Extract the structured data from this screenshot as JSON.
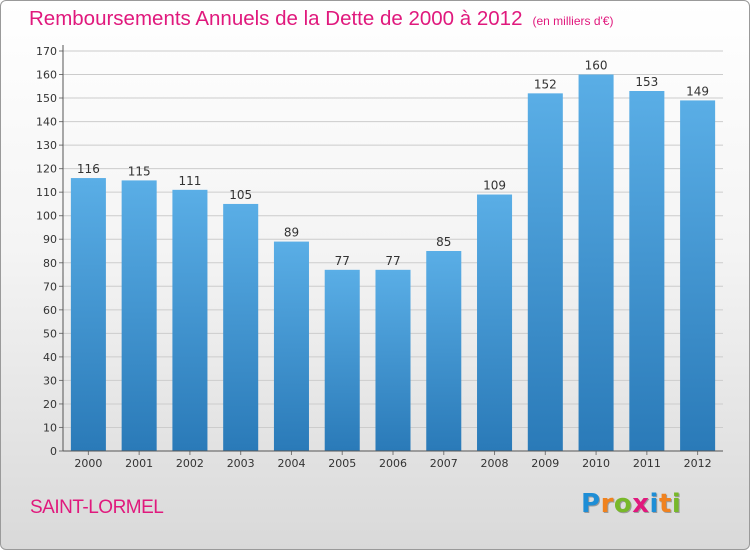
{
  "title": "Remboursements Annuels de la Dette de 2000 à 2012",
  "unit_label": "(en milliers d'€)",
  "commune": "SAINT-LORMEL",
  "logo": {
    "text": "Proxiti",
    "letters": [
      "P",
      "r",
      "o",
      "x",
      "i",
      "t",
      "i"
    ],
    "colors": [
      "#1e8ed6",
      "#f0821e",
      "#78b82a",
      "#e0197d",
      "#1e8ed6",
      "#f0821e",
      "#78b82a"
    ]
  },
  "colors": {
    "title": "#e0197d",
    "bar_top": "#5aaee6",
    "bar_bottom": "#2a7ab8",
    "grid": "#cccccc"
  },
  "chart_data": {
    "type": "bar",
    "categories": [
      "2000",
      "2001",
      "2002",
      "2003",
      "2004",
      "2005",
      "2006",
      "2007",
      "2008",
      "2009",
      "2010",
      "2011",
      "2012"
    ],
    "values": [
      116,
      115,
      111,
      105,
      89,
      77,
      77,
      85,
      109,
      152,
      160,
      153,
      149
    ],
    "ylim": [
      0,
      170
    ],
    "yticks": [
      0,
      10,
      20,
      30,
      40,
      50,
      60,
      70,
      80,
      90,
      100,
      110,
      120,
      130,
      140,
      150,
      160,
      170
    ],
    "grid": true,
    "data_labels": true,
    "xlabel": "",
    "ylabel": ""
  }
}
